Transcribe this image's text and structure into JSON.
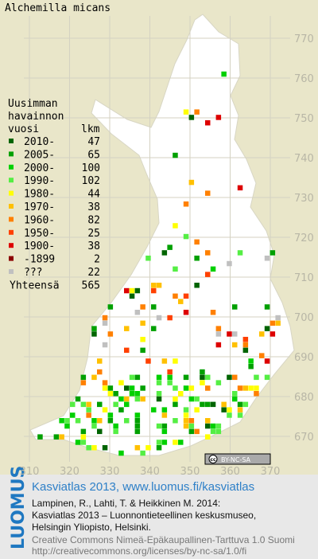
{
  "title": "Alchemilla micans",
  "map": {
    "northing_labels": [
      770,
      760,
      750,
      740,
      730,
      720,
      710,
      700,
      690,
      680,
      670
    ],
    "easting_labels": [
      310,
      320,
      330,
      340,
      350,
      360,
      370
    ],
    "license_badge": "BY-NC-SA",
    "license_badge_icon": "cc"
  },
  "legend": {
    "heading": [
      "Uusimman",
      "havainnon",
      "vuosi"
    ],
    "count_heading": "lkm",
    "rows": [
      {
        "label": "2010-",
        "count": 47,
        "color": "#006400"
      },
      {
        "label": "2005-",
        "count": 65,
        "color": "#00a000"
      },
      {
        "label": "2000-",
        "count": 100,
        "color": "#00d000"
      },
      {
        "label": "1990-",
        "count": 102,
        "color": "#55ee44"
      },
      {
        "label": "1980-",
        "count": 44,
        "color": "#ffff00"
      },
      {
        "label": "1970-",
        "count": 38,
        "color": "#ffc000"
      },
      {
        "label": "1960-",
        "count": 82,
        "color": "#ff8000"
      },
      {
        "label": "1950-",
        "count": 25,
        "color": "#ff4000"
      },
      {
        "label": "1900-",
        "count": 38,
        "color": "#dd0000"
      },
      {
        "label": "-1899",
        "count": 2,
        "color": "#8b0000"
      },
      {
        "label": "???",
        "count": 22,
        "color": "#c0c0c0"
      }
    ],
    "total_label": "Yhteensä",
    "total": 565
  },
  "footer": {
    "logo": "LUOMUS",
    "link": "Kasviatlas 2013, www.luomus.fi/kasviatlas",
    "citation": [
      "Lampinen, R., Lahti, T. & Heikkinen M. 2014:",
      "Kasviatlas 2013 – Luonnontieteellinen keskusmuseo,",
      "Helsingin Yliopisto, Helsinki."
    ],
    "license": [
      "Creative Commons Nimeä-Epäkaupallinen-Tarttuva 1.0 Suomi",
      "http://creativecommons.org/licenses/by-nc-sa/1.0/fi"
    ]
  }
}
